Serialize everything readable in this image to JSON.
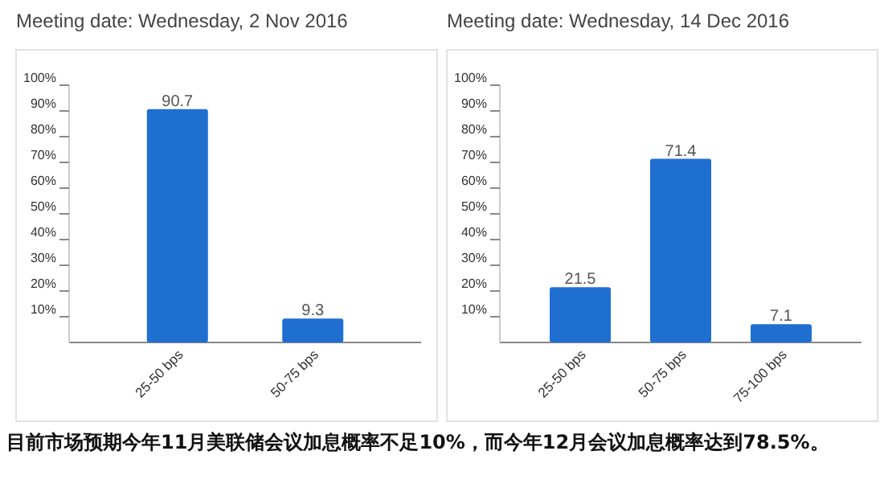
{
  "chart_data": [
    {
      "type": "bar",
      "title": "Meeting date: Wednesday, 2 Nov 2016",
      "categories": [
        "25-50 bps",
        "50-75 bps"
      ],
      "values": [
        90.7,
        9.3
      ],
      "color": "#1f6fd1",
      "data_labels": true,
      "ylim": [
        0,
        100
      ],
      "yticks": [
        {
          "value": 10,
          "label": "10%"
        },
        {
          "value": 20,
          "label": "20%"
        },
        {
          "value": 30,
          "label": "30%"
        },
        {
          "value": 40,
          "label": "40%"
        },
        {
          "value": 50,
          "label": "50%"
        },
        {
          "value": 60,
          "label": "60%"
        },
        {
          "value": 70,
          "label": "70%"
        },
        {
          "value": 80,
          "label": "80%"
        },
        {
          "value": 90,
          "label": "90%"
        },
        {
          "value": 100,
          "label": "100%"
        }
      ],
      "grid": false,
      "annotations": [
        "目前市场预期今年11月美联储会议加息概率不足10%，而今年12月会议加息概率达到78.5%。"
      ]
    },
    {
      "type": "bar",
      "title": "Meeting date: Wednesday, 14 Dec 2016",
      "categories": [
        "25-50 bps",
        "50-75 bps",
        "75-100 bps"
      ],
      "values": [
        21.5,
        71.4,
        7.1
      ],
      "color": "#1f6fd1",
      "data_labels": true,
      "ylim": [
        0,
        100
      ],
      "yticks": [
        {
          "value": 10,
          "label": "10%"
        },
        {
          "value": 20,
          "label": "20%"
        },
        {
          "value": 30,
          "label": "30%"
        },
        {
          "value": 40,
          "label": "40%"
        },
        {
          "value": 50,
          "label": "50%"
        },
        {
          "value": 60,
          "label": "60%"
        },
        {
          "value": 70,
          "label": "70%"
        },
        {
          "value": 80,
          "label": "80%"
        },
        {
          "value": 90,
          "label": "90%"
        },
        {
          "value": 100,
          "label": "100%"
        }
      ],
      "grid": false
    }
  ]
}
